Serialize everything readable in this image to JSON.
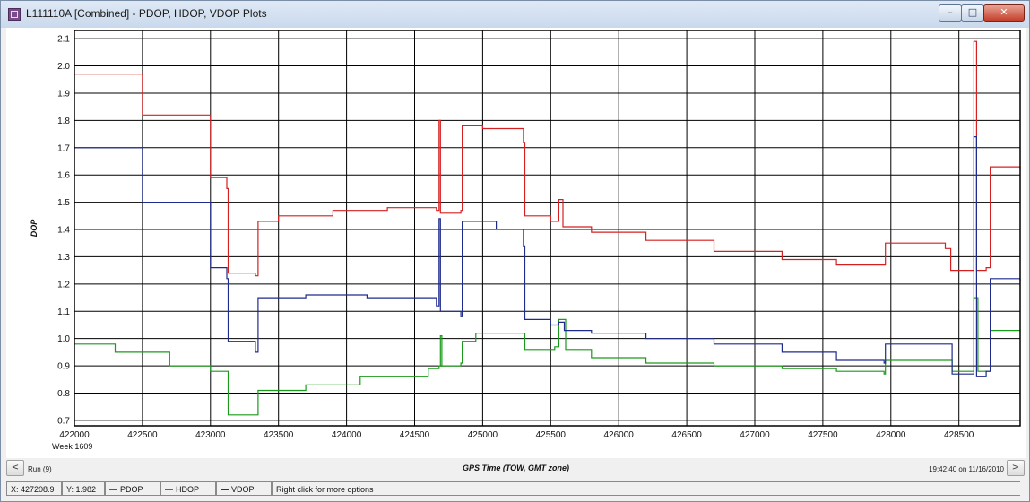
{
  "window": {
    "title": "L111110A [Combined] - PDOP, HDOP, VDOP Plots"
  },
  "titlebar_buttons": {
    "minimize": "–",
    "maximize": "□",
    "close": "✕"
  },
  "navigation": {
    "left": "<",
    "right": ">",
    "run": "Run (9)",
    "timestamp": "19:42:40 on 11/16/2010"
  },
  "status": {
    "x": "X: 427208.9",
    "y": "Y: 1.982",
    "pdop": "PDOP",
    "hdop": "HDOP",
    "vdop": "VDOP",
    "hint": "Right click for more options"
  },
  "colors": {
    "pdop": "#d42020",
    "hdop": "#1a9a1a",
    "vdop": "#1e2a8c",
    "grid": "#000000",
    "background": "#ffffff"
  },
  "chart_data": {
    "type": "line",
    "title": "",
    "xlabel": "GPS Time (TOW, GMT zone)",
    "xlabel_secondary": "Week 1609",
    "ylabel": "DOP",
    "xlim": [
      422000,
      428950
    ],
    "ylim": [
      0.68,
      2.13
    ],
    "xticks": [
      422000,
      422500,
      423000,
      423500,
      424000,
      424500,
      425000,
      425500,
      426000,
      426500,
      427000,
      427500,
      428000,
      428500
    ],
    "yticks": [
      0.7,
      0.8,
      0.9,
      1.0,
      1.1,
      1.2,
      1.3,
      1.4,
      1.5,
      1.6,
      1.7,
      1.8,
      1.9,
      2.0,
      2.1
    ],
    "ytick_labels": [
      "0.7",
      "0.8",
      "0.9",
      "1.0",
      "1.1",
      "1.2",
      "1.3",
      "1.4",
      "1.5",
      "1.6",
      "1.7",
      "1.8",
      "1.9",
      "2.0",
      "2.1"
    ],
    "grid": true,
    "series": [
      {
        "name": "PDOP",
        "color": "#d42020",
        "points": [
          [
            422000,
            1.97
          ],
          [
            422500,
            1.82
          ],
          [
            423000,
            1.59
          ],
          [
            423120,
            1.55
          ],
          [
            423130,
            1.24
          ],
          [
            423330,
            1.23
          ],
          [
            423350,
            1.43
          ],
          [
            423500,
            1.45
          ],
          [
            423900,
            1.47
          ],
          [
            424300,
            1.48
          ],
          [
            424660,
            1.47
          ],
          [
            424680,
            1.8
          ],
          [
            424690,
            1.46
          ],
          [
            424840,
            1.47
          ],
          [
            424850,
            1.78
          ],
          [
            425000,
            1.77
          ],
          [
            425300,
            1.72
          ],
          [
            425310,
            1.45
          ],
          [
            425500,
            1.43
          ],
          [
            425560,
            1.51
          ],
          [
            425590,
            1.41
          ],
          [
            425800,
            1.39
          ],
          [
            426200,
            1.36
          ],
          [
            426700,
            1.32
          ],
          [
            427200,
            1.29
          ],
          [
            427600,
            1.27
          ],
          [
            427950,
            1.27
          ],
          [
            427960,
            1.35
          ],
          [
            428400,
            1.33
          ],
          [
            428440,
            1.25
          ],
          [
            428580,
            1.25
          ],
          [
            428610,
            2.09
          ],
          [
            428630,
            1.25
          ],
          [
            428700,
            1.26
          ],
          [
            428730,
            1.63
          ],
          [
            428950,
            1.62
          ]
        ]
      },
      {
        "name": "HDOP",
        "color": "#1a9a1a",
        "points": [
          [
            422000,
            0.98
          ],
          [
            422300,
            0.95
          ],
          [
            422700,
            0.9
          ],
          [
            423000,
            0.88
          ],
          [
            423120,
            0.88
          ],
          [
            423130,
            0.72
          ],
          [
            423340,
            0.72
          ],
          [
            423350,
            0.81
          ],
          [
            423700,
            0.83
          ],
          [
            424100,
            0.86
          ],
          [
            424600,
            0.89
          ],
          [
            424680,
            0.9
          ],
          [
            424690,
            1.01
          ],
          [
            424700,
            0.9
          ],
          [
            424840,
            0.91
          ],
          [
            424850,
            0.99
          ],
          [
            424950,
            1.02
          ],
          [
            425300,
            1.02
          ],
          [
            425310,
            0.96
          ],
          [
            425530,
            0.97
          ],
          [
            425560,
            1.07
          ],
          [
            425610,
            0.96
          ],
          [
            425800,
            0.93
          ],
          [
            426200,
            0.91
          ],
          [
            426700,
            0.9
          ],
          [
            427200,
            0.89
          ],
          [
            427600,
            0.88
          ],
          [
            427950,
            0.87
          ],
          [
            427960,
            0.92
          ],
          [
            428440,
            0.92
          ],
          [
            428450,
            0.88
          ],
          [
            428590,
            0.88
          ],
          [
            428610,
            1.15
          ],
          [
            428640,
            0.88
          ],
          [
            428700,
            0.88
          ],
          [
            428730,
            1.03
          ],
          [
            428950,
            1.03
          ]
        ]
      },
      {
        "name": "VDOP",
        "color": "#1e2a8c",
        "points": [
          [
            422000,
            1.7
          ],
          [
            422500,
            1.5
          ],
          [
            423000,
            1.26
          ],
          [
            423120,
            1.22
          ],
          [
            423130,
            0.99
          ],
          [
            423320,
            0.99
          ],
          [
            423330,
            0.95
          ],
          [
            423350,
            1.15
          ],
          [
            423500,
            1.15
          ],
          [
            423700,
            1.16
          ],
          [
            424150,
            1.15
          ],
          [
            424660,
            1.12
          ],
          [
            424680,
            1.44
          ],
          [
            424690,
            1.1
          ],
          [
            424840,
            1.08
          ],
          [
            424850,
            1.43
          ],
          [
            425100,
            1.4
          ],
          [
            425300,
            1.34
          ],
          [
            425310,
            1.07
          ],
          [
            425500,
            1.05
          ],
          [
            425560,
            1.06
          ],
          [
            425600,
            1.03
          ],
          [
            425800,
            1.02
          ],
          [
            426200,
            1.0
          ],
          [
            426700,
            0.98
          ],
          [
            427200,
            0.95
          ],
          [
            427600,
            0.92
          ],
          [
            427950,
            0.91
          ],
          [
            427960,
            0.98
          ],
          [
            428440,
            0.98
          ],
          [
            428450,
            0.87
          ],
          [
            428590,
            0.87
          ],
          [
            428610,
            1.74
          ],
          [
            428630,
            0.86
          ],
          [
            428700,
            0.88
          ],
          [
            428730,
            1.22
          ],
          [
            428950,
            1.21
          ]
        ]
      }
    ]
  }
}
